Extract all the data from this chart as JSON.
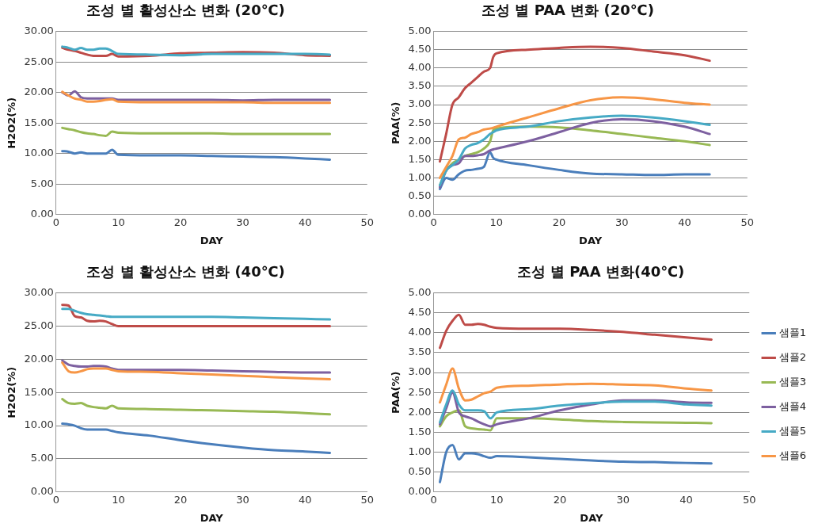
{
  "chart_data": [
    {
      "type": "line",
      "title": "조성 별 활성산소 변화 (20℃)",
      "xlabel": "DAY",
      "ylabel": "H2O2(%)",
      "x": [
        1,
        2,
        3,
        4,
        5,
        6,
        7,
        8,
        9,
        10,
        15,
        20,
        25,
        30,
        35,
        40,
        44
      ],
      "series": [
        {
          "color": "#4a7ebb",
          "values": [
            10.4,
            10.3,
            10.0,
            10.2,
            10.0,
            10.0,
            10.0,
            10.0,
            10.6,
            9.8,
            9.7,
            9.7,
            9.6,
            9.5,
            9.4,
            9.2,
            9.0
          ]
        },
        {
          "color": "#be4b48",
          "values": [
            27.3,
            27.0,
            26.8,
            26.5,
            26.2,
            26.0,
            26.0,
            26.0,
            26.3,
            25.9,
            26.0,
            26.4,
            26.5,
            26.6,
            26.5,
            26.1,
            26.0
          ]
        },
        {
          "color": "#98b954",
          "values": [
            14.2,
            14.0,
            13.8,
            13.5,
            13.3,
            13.2,
            13.0,
            12.9,
            13.6,
            13.4,
            13.3,
            13.3,
            13.3,
            13.2,
            13.2,
            13.2,
            13.2
          ]
        },
        {
          "color": "#7d60a0",
          "values": [
            20.0,
            19.5,
            20.2,
            19.2,
            19.0,
            19.0,
            19.0,
            19.0,
            19.0,
            18.8,
            18.8,
            18.8,
            18.8,
            18.7,
            18.8,
            18.8,
            18.8
          ]
        },
        {
          "color": "#46aac5",
          "values": [
            27.5,
            27.3,
            27.0,
            27.3,
            27.0,
            27.0,
            27.2,
            27.2,
            26.8,
            26.3,
            26.2,
            26.1,
            26.3,
            26.3,
            26.3,
            26.3,
            26.2
          ]
        },
        {
          "color": "#f79646",
          "values": [
            20.1,
            19.5,
            19.0,
            18.8,
            18.5,
            18.5,
            18.6,
            18.8,
            18.9,
            18.5,
            18.4,
            18.4,
            18.4,
            18.4,
            18.3,
            18.3,
            18.3
          ]
        }
      ],
      "xlim": [
        0,
        50
      ],
      "xticks": [
        0,
        10,
        20,
        30,
        40,
        50
      ],
      "ylim": [
        0,
        30
      ],
      "yticks": [
        {
          "value": 0,
          "label": "0.00"
        },
        {
          "value": 5,
          "label": "5.00"
        },
        {
          "value": 10,
          "label": "10.00"
        },
        {
          "value": 15,
          "label": "15.00"
        },
        {
          "value": 20,
          "label": "20.00"
        },
        {
          "value": 25,
          "label": "25.00"
        },
        {
          "value": 30,
          "label": "30.00"
        }
      ],
      "grid": "y"
    },
    {
      "type": "line",
      "title": "조성 별 PAA 변화 (20℃)",
      "xlabel": "DAY",
      "ylabel": "PAA(%)",
      "x": [
        1,
        2,
        3,
        4,
        5,
        6,
        7,
        8,
        9,
        9.5,
        10,
        15,
        20,
        25,
        30,
        35,
        40,
        44
      ],
      "series": [
        {
          "color": "#4a7ebb",
          "values": [
            0.7,
            1.0,
            0.95,
            1.1,
            1.2,
            1.22,
            1.25,
            1.3,
            1.7,
            1.55,
            1.5,
            1.35,
            1.22,
            1.12,
            1.1,
            1.08,
            1.1,
            1.1
          ]
        },
        {
          "color": "#be4b48",
          "values": [
            1.45,
            2.2,
            3.0,
            3.2,
            3.45,
            3.6,
            3.75,
            3.9,
            4.0,
            4.3,
            4.4,
            4.5,
            4.55,
            4.58,
            4.55,
            4.45,
            4.35,
            4.2
          ]
        },
        {
          "color": "#98b954",
          "values": [
            0.8,
            1.2,
            1.4,
            1.5,
            1.6,
            1.65,
            1.7,
            1.8,
            2.0,
            2.3,
            2.35,
            2.4,
            2.38,
            2.3,
            2.2,
            2.1,
            2.0,
            1.9
          ]
        },
        {
          "color": "#7d60a0",
          "values": [
            0.75,
            1.2,
            1.35,
            1.4,
            1.6,
            1.6,
            1.62,
            1.65,
            1.75,
            1.78,
            1.8,
            2.0,
            2.25,
            2.5,
            2.6,
            2.55,
            2.4,
            2.2
          ]
        },
        {
          "color": "#46aac5",
          "values": [
            0.8,
            1.2,
            1.35,
            1.5,
            1.8,
            1.9,
            1.95,
            2.05,
            2.2,
            2.25,
            2.3,
            2.4,
            2.55,
            2.65,
            2.7,
            2.65,
            2.55,
            2.45
          ]
        },
        {
          "color": "#f79646",
          "values": [
            1.0,
            1.3,
            1.6,
            2.05,
            2.1,
            2.2,
            2.25,
            2.32,
            2.35,
            2.37,
            2.4,
            2.65,
            2.9,
            3.12,
            3.2,
            3.15,
            3.05,
            3.0
          ]
        }
      ],
      "xlim": [
        0,
        50
      ],
      "xticks": [
        0,
        10,
        20,
        30,
        40,
        50
      ],
      "ylim": [
        0,
        5
      ],
      "yticks": [
        {
          "value": 0,
          "label": "0.00"
        },
        {
          "value": 0.5,
          "label": "0.50"
        },
        {
          "value": 1,
          "label": "1.00"
        },
        {
          "value": 1.5,
          "label": "1.50"
        },
        {
          "value": 2,
          "label": "2.00"
        },
        {
          "value": 2.5,
          "label": "2.50"
        },
        {
          "value": 3,
          "label": "3.00"
        },
        {
          "value": 3.5,
          "label": "3.50"
        },
        {
          "value": 4,
          "label": "4.00"
        },
        {
          "value": 4.5,
          "label": "4.50"
        },
        {
          "value": 5,
          "label": "5.00"
        }
      ],
      "grid": "y"
    },
    {
      "type": "line",
      "title": "조성 별 활성산소 변화 (40℃)",
      "xlabel": "DAY",
      "ylabel": "H2O2(%)",
      "x": [
        1,
        2,
        3,
        4,
        5,
        6,
        7,
        8,
        9,
        10,
        15,
        20,
        25,
        30,
        35,
        40,
        44
      ],
      "series": [
        {
          "color": "#4a7ebb",
          "values": [
            10.3,
            10.2,
            10.0,
            9.6,
            9.4,
            9.4,
            9.4,
            9.4,
            9.2,
            9.0,
            8.5,
            7.8,
            7.2,
            6.7,
            6.3,
            6.1,
            5.9
          ]
        },
        {
          "color": "#be4b48",
          "values": [
            28.2,
            28.1,
            26.5,
            26.3,
            25.8,
            25.7,
            25.8,
            25.7,
            25.3,
            25.0,
            25.0,
            25.0,
            25.0,
            25.0,
            25.0,
            25.0,
            25.0
          ]
        },
        {
          "color": "#98b954",
          "values": [
            14.0,
            13.4,
            13.3,
            13.4,
            13.0,
            12.8,
            12.7,
            12.6,
            13.0,
            12.6,
            12.5,
            12.4,
            12.3,
            12.2,
            12.1,
            11.9,
            11.7
          ]
        },
        {
          "color": "#7d60a0",
          "values": [
            19.8,
            19.2,
            19.0,
            18.9,
            18.9,
            19.0,
            19.0,
            18.9,
            18.6,
            18.4,
            18.4,
            18.4,
            18.3,
            18.2,
            18.1,
            18.0,
            18.0
          ]
        },
        {
          "color": "#46aac5",
          "values": [
            27.6,
            27.6,
            27.3,
            27.0,
            26.8,
            26.7,
            26.6,
            26.5,
            26.4,
            26.4,
            26.4,
            26.4,
            26.4,
            26.3,
            26.2,
            26.1,
            26.0
          ]
        },
        {
          "color": "#f79646",
          "values": [
            19.5,
            18.2,
            18.0,
            18.2,
            18.5,
            18.6,
            18.6,
            18.6,
            18.4,
            18.2,
            18.1,
            17.9,
            17.7,
            17.5,
            17.3,
            17.1,
            17.0
          ]
        }
      ],
      "xlim": [
        0,
        50
      ],
      "xticks": [
        0,
        10,
        20,
        30,
        40,
        50
      ],
      "ylim": [
        0,
        30
      ],
      "yticks": [
        {
          "value": 0,
          "label": "0.00"
        },
        {
          "value": 5,
          "label": "5.00"
        },
        {
          "value": 10,
          "label": "10.00"
        },
        {
          "value": 15,
          "label": "15.00"
        },
        {
          "value": 20,
          "label": "20.00"
        },
        {
          "value": 25,
          "label": "25.00"
        },
        {
          "value": 30,
          "label": "30.00"
        }
      ],
      "grid": "y"
    },
    {
      "type": "line",
      "title": "조성 별 PAA 변화(40℃)",
      "xlabel": "DAY",
      "ylabel": "PAA(%)",
      "x": [
        1,
        2,
        3,
        4,
        5,
        6,
        7,
        8,
        9,
        10,
        15,
        20,
        25,
        30,
        35,
        40,
        44
      ],
      "series": [
        {
          "name": "샘플1",
          "color": "#4a7ebb",
          "values": [
            0.25,
            1.0,
            1.18,
            0.82,
            0.97,
            0.97,
            0.95,
            0.9,
            0.86,
            0.9,
            0.87,
            0.83,
            0.79,
            0.76,
            0.75,
            0.73,
            0.72
          ]
        },
        {
          "name": "샘플2",
          "color": "#be4b48",
          "values": [
            3.62,
            4.05,
            4.3,
            4.45,
            4.2,
            4.2,
            4.22,
            4.2,
            4.15,
            4.12,
            4.1,
            4.1,
            4.07,
            4.02,
            3.95,
            3.88,
            3.83
          ]
        },
        {
          "name": "샘플3",
          "color": "#98b954",
          "values": [
            1.65,
            1.9,
            2.0,
            2.05,
            1.65,
            1.6,
            1.58,
            1.57,
            1.55,
            1.85,
            1.85,
            1.82,
            1.78,
            1.76,
            1.75,
            1.74,
            1.73
          ]
        },
        {
          "name": "샘플4",
          "color": "#7d60a0",
          "values": [
            1.7,
            2.1,
            2.5,
            2.0,
            1.9,
            1.85,
            1.77,
            1.7,
            1.65,
            1.7,
            1.85,
            2.05,
            2.2,
            2.3,
            2.3,
            2.25,
            2.24
          ]
        },
        {
          "name": "샘플5",
          "color": "#46aac5",
          "values": [
            1.75,
            2.2,
            2.55,
            2.2,
            2.05,
            2.05,
            2.05,
            2.03,
            1.85,
            2.0,
            2.08,
            2.17,
            2.23,
            2.27,
            2.27,
            2.2,
            2.17
          ]
        },
        {
          "name": "샘플6",
          "color": "#f79646",
          "values": [
            2.25,
            2.7,
            3.1,
            2.6,
            2.3,
            2.32,
            2.4,
            2.48,
            2.52,
            2.62,
            2.67,
            2.7,
            2.72,
            2.7,
            2.68,
            2.6,
            2.55
          ]
        }
      ],
      "xlim": [
        0,
        50
      ],
      "xticks": [
        0,
        10,
        20,
        30,
        40,
        50
      ],
      "ylim": [
        0,
        5
      ],
      "yticks": [
        {
          "value": 0,
          "label": "0.00"
        },
        {
          "value": 0.5,
          "label": "0.50"
        },
        {
          "value": 1,
          "label": "1.00"
        },
        {
          "value": 1.5,
          "label": "1.50"
        },
        {
          "value": 2,
          "label": "2.00"
        },
        {
          "value": 2.5,
          "label": "2.50"
        },
        {
          "value": 3,
          "label": "3.00"
        },
        {
          "value": 3.5,
          "label": "3.50"
        },
        {
          "value": 4,
          "label": "4.00"
        },
        {
          "value": 4.5,
          "label": "4.50"
        },
        {
          "value": 5,
          "label": "5.00"
        }
      ],
      "grid": "y",
      "legend": "right"
    }
  ]
}
